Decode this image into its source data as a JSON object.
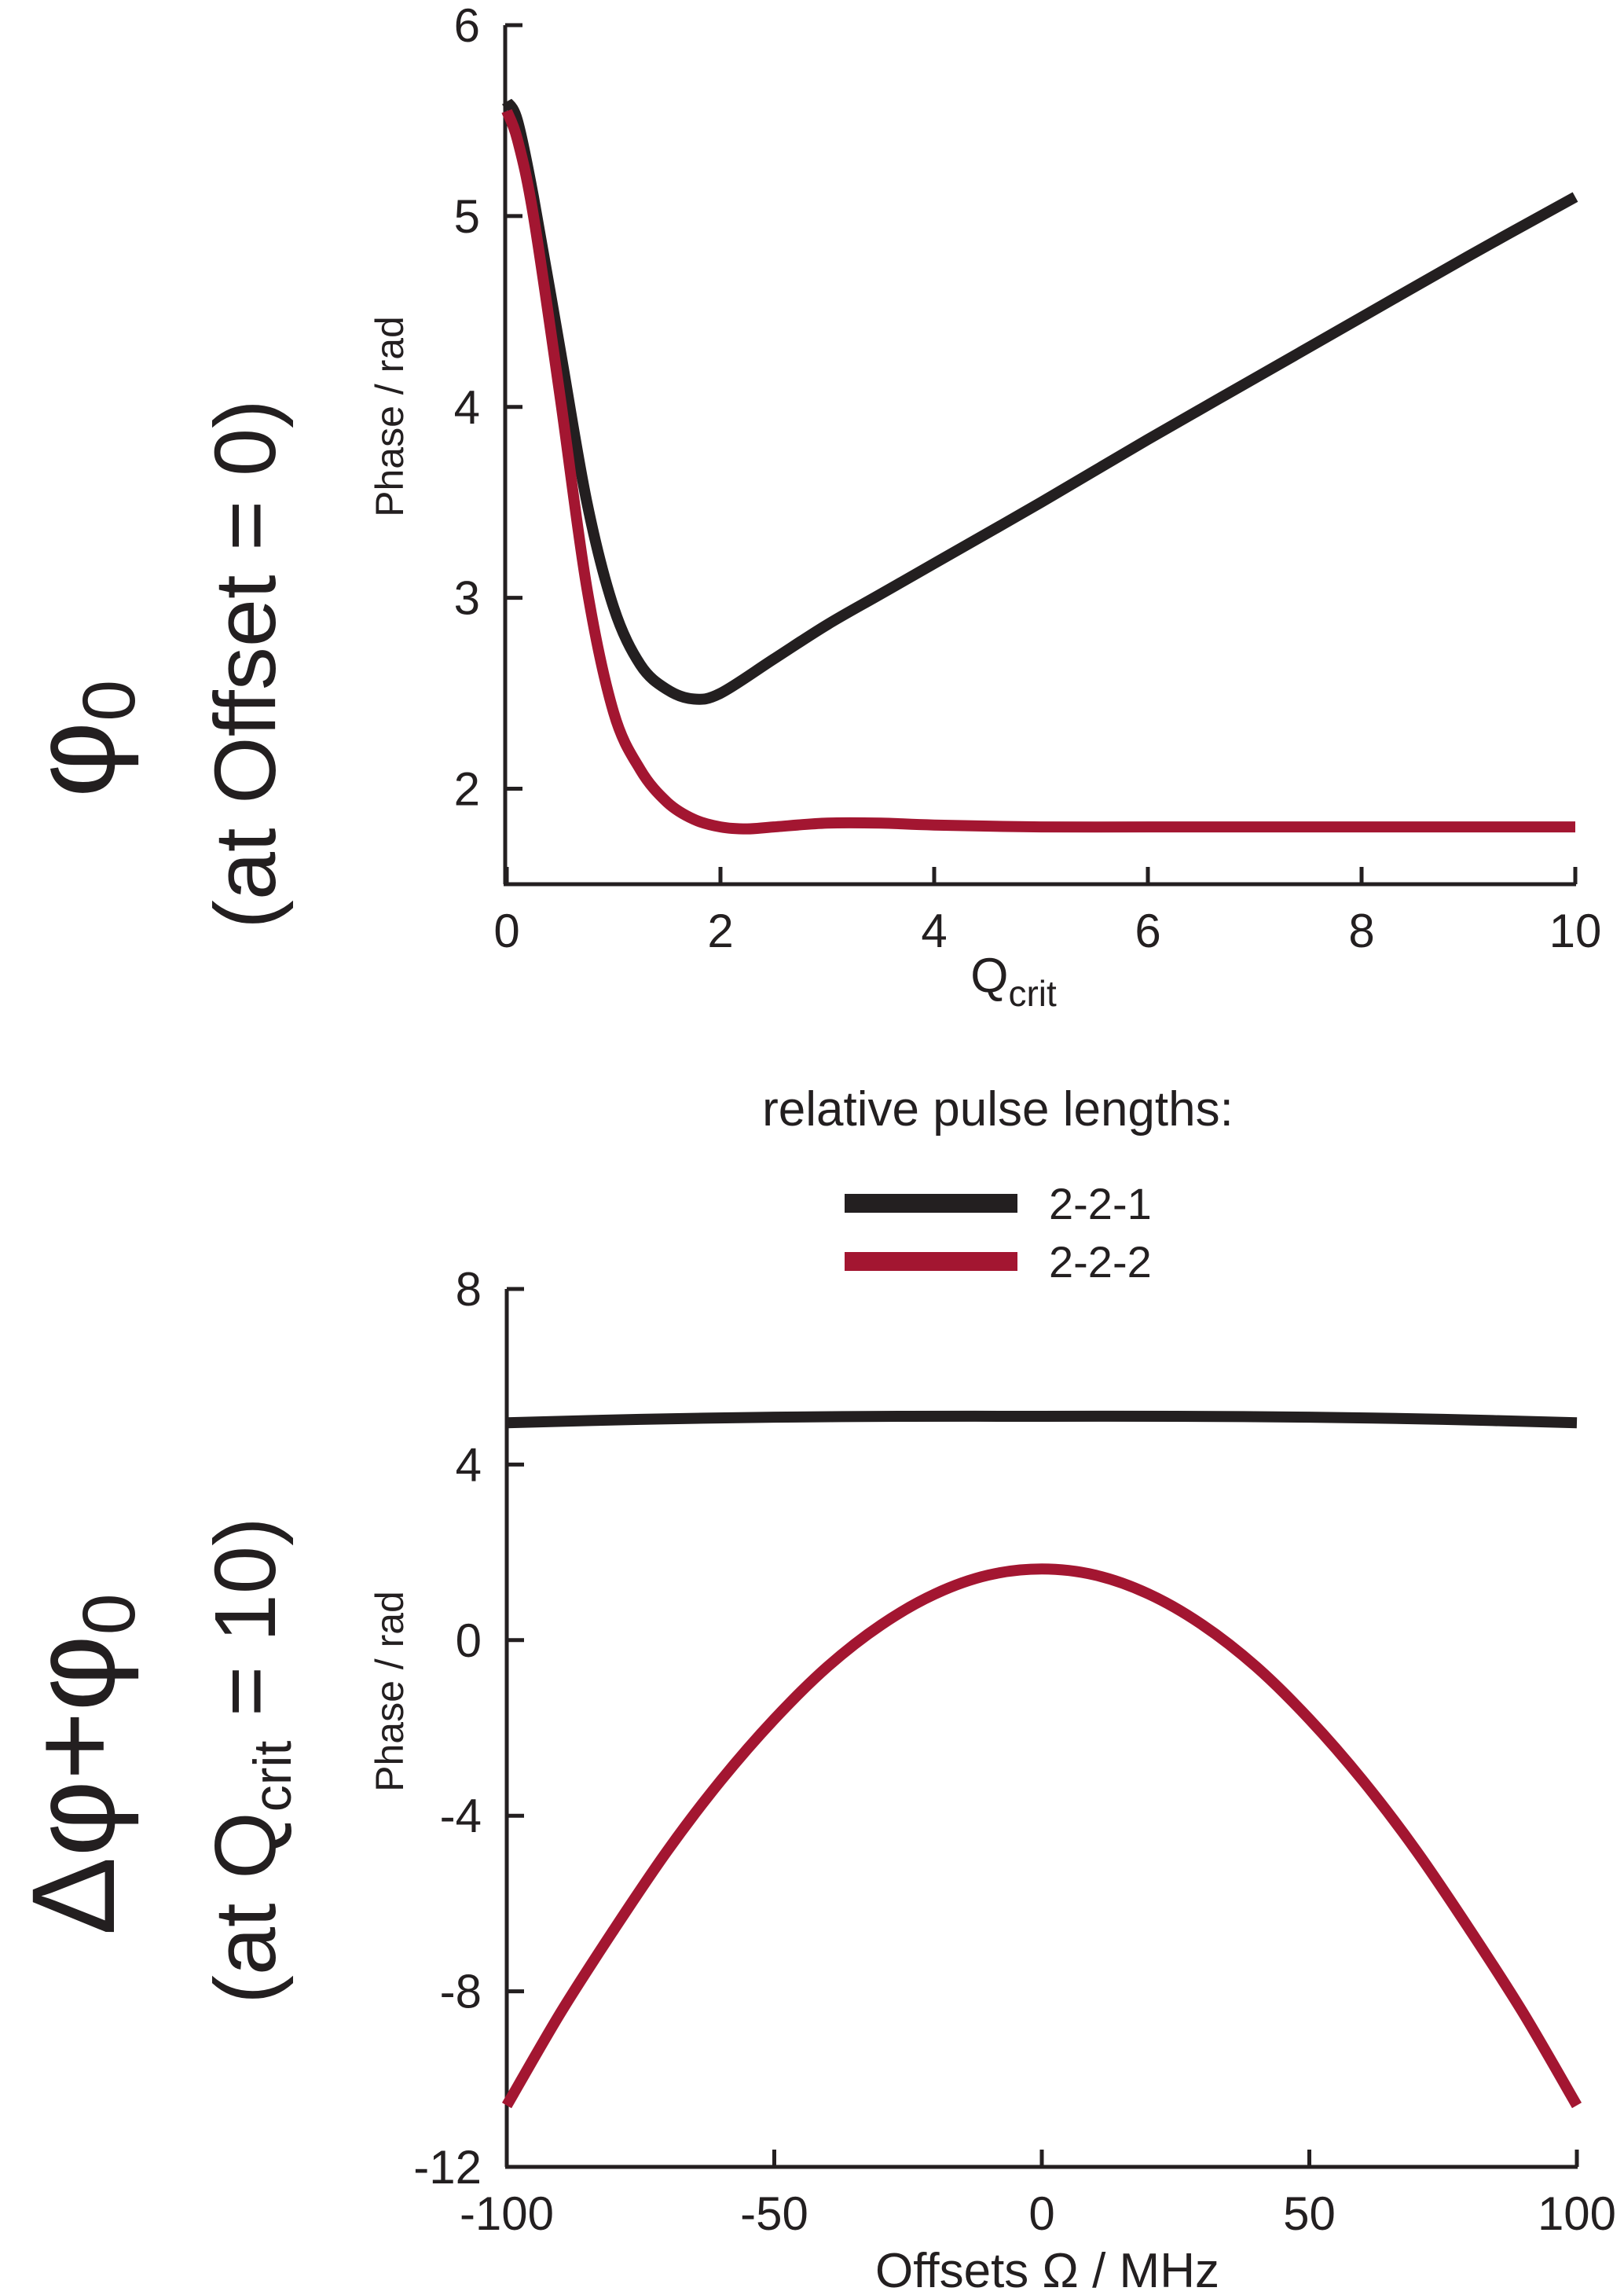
{
  "colors": {
    "black_series": "#231f20",
    "red_series": "#a31631",
    "axis": "#231f20"
  },
  "side_labels": {
    "top_line1": "φ",
    "top_line1_sub": "0",
    "top_line2": "(at Offset = 0)",
    "bottom_line1_a": "Δφ+φ",
    "bottom_line1_sub": "0",
    "bottom_line2_a": "(at Q",
    "bottom_line2_sub": "crit",
    "bottom_line2_b": " = 10)"
  },
  "legend": {
    "title": "relative pulse lengths:",
    "items": [
      {
        "label": "2-2-1",
        "color": "#231f20"
      },
      {
        "label": "2-2-2",
        "color": "#a31631"
      }
    ]
  },
  "chart_data": [
    {
      "type": "line",
      "title": "",
      "xlabel": "Q",
      "xlabel_sub": "crit",
      "ylabel": "Phase / rad",
      "xlim": [
        0,
        10
      ],
      "ylim": [
        1.5,
        6
      ],
      "xticks": [
        0,
        2,
        4,
        6,
        8,
        10
      ],
      "xtick_labels": [
        "0",
        "2",
        "4",
        "6",
        "8",
        "10"
      ],
      "yticks": [
        2,
        3,
        4,
        5,
        6
      ],
      "ytick_labels": [
        "2",
        "3",
        "4",
        "5",
        "6"
      ],
      "series": [
        {
          "name": "2-2-1",
          "color": "#231f20",
          "x": [
            0,
            0.1,
            0.25,
            0.5,
            0.75,
            1.0,
            1.25,
            1.5,
            1.75,
            2.0,
            2.5,
            3.0,
            3.5,
            4.0,
            5.0,
            6.0,
            7.0,
            8.0,
            9.0,
            10.0
          ],
          "y": [
            5.6,
            5.5,
            5.1,
            4.3,
            3.5,
            2.95,
            2.65,
            2.52,
            2.47,
            2.5,
            2.68,
            2.86,
            3.02,
            3.18,
            3.5,
            3.83,
            4.15,
            4.47,
            4.79,
            5.1
          ]
        },
        {
          "name": "2-2-2",
          "color": "#a31631",
          "x": [
            0,
            0.1,
            0.25,
            0.5,
            0.75,
            1.0,
            1.25,
            1.5,
            1.75,
            2.0,
            2.25,
            2.5,
            3.0,
            3.5,
            4.0,
            5.0,
            6.0,
            7.0,
            8.0,
            9.0,
            10.0
          ],
          "y": [
            5.55,
            5.4,
            5.0,
            4.05,
            3.05,
            2.4,
            2.1,
            1.93,
            1.84,
            1.8,
            1.79,
            1.8,
            1.82,
            1.82,
            1.81,
            1.8,
            1.8,
            1.8,
            1.8,
            1.8,
            1.8
          ]
        }
      ]
    },
    {
      "type": "line",
      "title": "",
      "xlabel": "Offsets Ω / MHz",
      "ylabel": "Phase / rad",
      "xlim": [
        -100,
        100
      ],
      "ylim": [
        -12,
        8
      ],
      "xticks": [
        -100,
        -50,
        0,
        50,
        100
      ],
      "xtick_labels": [
        "-100",
        "-50",
        "0",
        "50",
        "100"
      ],
      "yticks": [
        -12,
        -8,
        -4,
        0,
        4,
        8
      ],
      "ytick_labels": [
        "-12",
        "-8",
        "-4",
        "0",
        "4",
        "8"
      ],
      "series": [
        {
          "name": "2-2-1",
          "color": "#231f20",
          "x": [
            -100,
            -75,
            -50,
            -25,
            0,
            25,
            50,
            75,
            100
          ],
          "y": [
            4.95,
            5.03,
            5.08,
            5.1,
            5.1,
            5.1,
            5.08,
            5.03,
            4.95
          ]
        },
        {
          "name": "2-2-2",
          "color": "#a31631",
          "x": [
            -100,
            -90,
            -80,
            -70,
            -60,
            -50,
            -40,
            -30,
            -20,
            -10,
            0,
            10,
            20,
            30,
            40,
            50,
            60,
            70,
            80,
            90,
            100
          ],
          "y": [
            -10.6,
            -8.5,
            -6.6,
            -4.8,
            -3.2,
            -1.8,
            -0.6,
            0.35,
            1.05,
            1.48,
            1.62,
            1.48,
            1.05,
            0.35,
            -0.6,
            -1.8,
            -3.2,
            -4.8,
            -6.6,
            -8.5,
            -10.6
          ]
        }
      ]
    }
  ]
}
